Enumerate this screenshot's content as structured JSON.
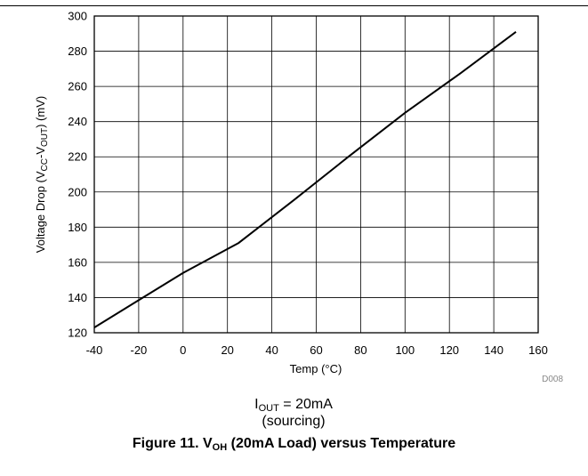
{
  "chart_data": {
    "type": "line",
    "xlabel": "Temp (°C)",
    "ylabel": {
      "prefix": "Voltage Drop (V",
      "sub1": "CC",
      "mid": "-V",
      "sub2": "OUT",
      "suffix": ") (mV)"
    },
    "xlim": [
      -40,
      160
    ],
    "ylim": [
      120,
      300
    ],
    "xticks": [
      "-40",
      "-20",
      "0",
      "20",
      "40",
      "60",
      "80",
      "100",
      "120",
      "140",
      "160"
    ],
    "yticks": [
      "120",
      "140",
      "160",
      "180",
      "200",
      "220",
      "240",
      "260",
      "280",
      "300"
    ],
    "grid": true,
    "series": [
      {
        "x": [
          -40,
          -20,
          0,
          25,
          50,
          75,
          100,
          125,
          150
        ],
        "y": [
          123,
          138.5,
          154,
          171,
          195.5,
          220.5,
          245,
          267.5,
          291
        ]
      }
    ],
    "code": "D008"
  },
  "condition": {
    "line1_main": "I",
    "line1_sub": "OUT",
    "line1_rest": " = 20mA",
    "line2": "(sourcing)"
  },
  "caption": {
    "prefix": "Figure 11. V",
    "sub": "OH",
    "suffix": " (20mA Load) versus Temperature"
  }
}
